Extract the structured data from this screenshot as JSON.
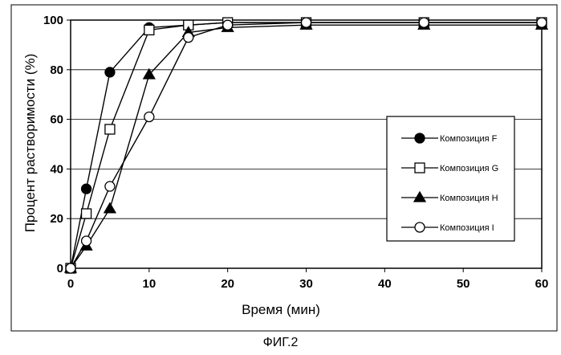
{
  "chart_data": {
    "type": "line",
    "xlabel": "Время (мин)",
    "ylabel": "Процент растворимости (%)",
    "xlim": [
      0,
      60
    ],
    "ylim": [
      0,
      100
    ],
    "xticks": [
      0,
      10,
      20,
      30,
      40,
      50,
      60
    ],
    "yticks": [
      0,
      20,
      40,
      60,
      80,
      100
    ],
    "grid": "horizontal",
    "legend_position": "right",
    "series": [
      {
        "name": "Композиция F",
        "marker": "filled-circle",
        "x": [
          0,
          2,
          5,
          10,
          15,
          20,
          30,
          45,
          60
        ],
        "y": [
          0,
          32,
          79,
          97,
          98,
          99,
          99,
          99,
          99
        ]
      },
      {
        "name": "Композиция G",
        "marker": "open-square",
        "x": [
          0,
          2,
          5,
          10,
          15,
          20,
          30,
          45,
          60
        ],
        "y": [
          0,
          22,
          56,
          96,
          98,
          99,
          99,
          99,
          99
        ]
      },
      {
        "name": "Композиция H",
        "marker": "filled-triangle",
        "x": [
          0,
          2,
          5,
          10,
          15,
          20,
          30,
          45,
          60
        ],
        "y": [
          0,
          9,
          24,
          78,
          95,
          97,
          98,
          98,
          98
        ]
      },
      {
        "name": "Композиция I",
        "marker": "open-circle",
        "x": [
          0,
          2,
          5,
          10,
          15,
          20,
          30,
          45,
          60
        ],
        "y": [
          0,
          11,
          33,
          61,
          93,
          98,
          99,
          99,
          99
        ]
      }
    ]
  },
  "caption": "ФИГ.2"
}
